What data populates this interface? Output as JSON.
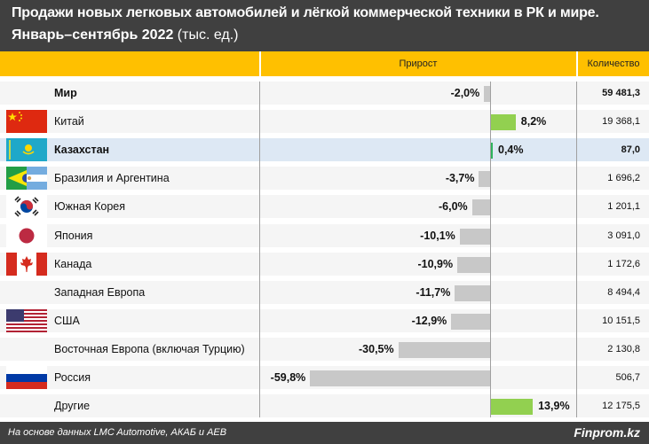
{
  "title": {
    "line1": "Продажи новых легковых автомобилей и лёгкой коммерческой техники в РК и мире.",
    "line2_bold": "Январь–сентябрь 2022",
    "line2_rest": " (тыс. ед.)"
  },
  "header": {
    "growth": "Прирост",
    "quantity": "Количество"
  },
  "colors": {
    "title_bg": "#404040",
    "header_bg": "#ffc000",
    "positive_bar": "#92d050",
    "kazakhstan_bar": "#2db35d",
    "negative_bar": "#c8c8c8",
    "highlight_row": "#dde8f4"
  },
  "chart_data": {
    "type": "bar",
    "orientation": "horizontal",
    "title": "Продажи новых легковых автомобилей и лёгкой коммерческой техники в РК и мире. Январь–сентябрь 2022 (тыс. ед.)",
    "xlabel": "Прирост",
    "units": "%",
    "xlim": [
      -60,
      14
    ],
    "categories": [
      "Мир",
      "Китай",
      "Казахстан",
      "Бразилия и Аргентина",
      "Южная Корея",
      "Япония",
      "Канада",
      "Западная Европа",
      "США",
      "Восточная Европа (включая Турцию)",
      "Россия",
      "Другие"
    ],
    "series": [
      {
        "name": "Прирост",
        "values": [
          -2.0,
          8.2,
          0.4,
          -3.7,
          -6.0,
          -10.1,
          -10.9,
          -11.7,
          -12.9,
          -30.5,
          -59.8,
          13.9
        ],
        "labels": [
          "-2,0%",
          "8,2%",
          "0,4%",
          "-3,7%",
          "-6,0%",
          "-10,1%",
          "-10,9%",
          "-11,7%",
          "-12,9%",
          "-30,5%",
          "-59,8%",
          "13,9%"
        ]
      },
      {
        "name": "Количество",
        "values": [
          59481.3,
          19368.1,
          87.0,
          1696.2,
          1201.1,
          3091.0,
          1172.6,
          8494.4,
          10151.5,
          2130.8,
          506.7,
          12175.5
        ],
        "labels": [
          "59 481,3",
          "19 368,1",
          "87,0",
          "1 696,2",
          "1 201,1",
          "3 091,0",
          "1 172,6",
          "8 494,4",
          "10 151,5",
          "2 130,8",
          "506,7",
          "12 175,5"
        ]
      }
    ],
    "flags": [
      "none",
      "china-flag-icon",
      "kazakhstan-flag-icon",
      "brazil-argentina-flag-icon",
      "south-korea-flag-icon",
      "japan-flag-icon",
      "canada-flag-icon",
      "none",
      "usa-flag-icon",
      "none",
      "russia-flag-icon",
      "none"
    ],
    "bold_rows": [
      "Мир",
      "Казахстан"
    ],
    "highlight_row": "Казахстан"
  },
  "footer": {
    "source": "На основе данных LMC Automotive, АКАБ и АЕВ",
    "brand": "Finprom.kz"
  }
}
